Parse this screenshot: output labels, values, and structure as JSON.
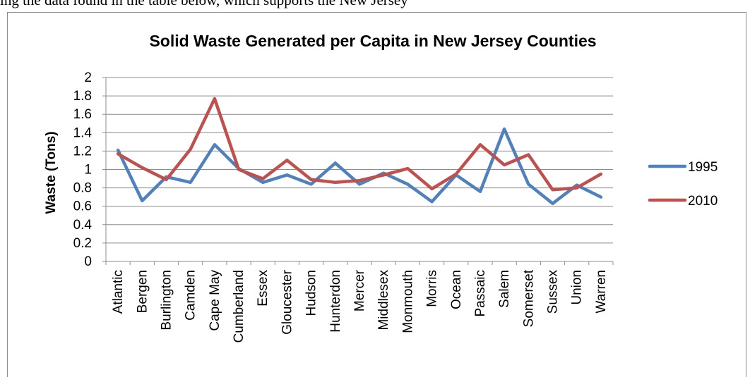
{
  "document": {
    "top_text": "ing the data found in the table below, which supports the New Jersey"
  },
  "chart_data": {
    "type": "line",
    "title": "Solid Waste Generated per Capita in New Jersey Counties",
    "xlabel": "",
    "ylabel": "Waste (Tons)",
    "ylim": [
      0,
      2
    ],
    "yticks": [
      "0",
      "0.2",
      "0.4",
      "0.6",
      "0.8",
      "1",
      "1.2",
      "1.4",
      "1.6",
      "1.8",
      "2"
    ],
    "grid": true,
    "legend_position": "right",
    "categories": [
      "Atlantic",
      "Bergen",
      "Burlington",
      "Camden",
      "Cape May",
      "Cumberland",
      "Essex",
      "Gloucester",
      "Hudson",
      "Hunterdon",
      "Mercer",
      "Middlesex",
      "Monmouth",
      "Morris",
      "Ocean",
      "Passaic",
      "Salem",
      "Somerset",
      "Sussex",
      "Union",
      "Warren"
    ],
    "series": [
      {
        "name": "1995",
        "color": "#4f81bd",
        "values": [
          1.21,
          0.66,
          0.92,
          0.86,
          1.27,
          1.01,
          0.86,
          0.94,
          0.84,
          1.07,
          0.84,
          0.96,
          0.84,
          0.65,
          0.94,
          0.76,
          1.44,
          0.84,
          0.63,
          0.83,
          0.7
        ]
      },
      {
        "name": "2010",
        "color": "#c0504d",
        "values": [
          1.17,
          1.02,
          0.89,
          1.22,
          1.77,
          1.0,
          0.9,
          1.1,
          0.89,
          0.86,
          0.88,
          0.94,
          1.01,
          0.79,
          0.95,
          1.27,
          1.05,
          1.16,
          0.78,
          0.8,
          0.95
        ]
      }
    ]
  }
}
